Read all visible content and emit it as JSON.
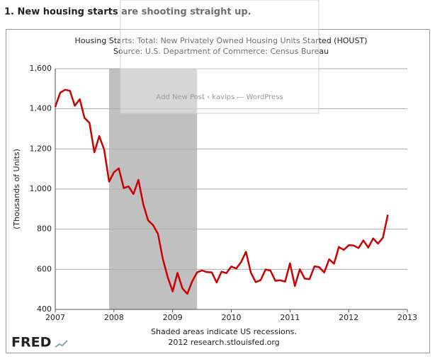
{
  "heading": "1. New housing starts are shooting straight up.",
  "overlay_text": "Add New Post ‹ kavips — WordPress",
  "chart_data": {
    "type": "line",
    "title": "Housing Starts: Total: New Privately Owned Housing Units Started (HOUST)",
    "subtitle": "Source: U.S. Department of Commerce: Census Bureau",
    "y_label": "(Thousands of Units)",
    "note": "Shaded areas indicate US recessions.",
    "source_line": "2012 research.stlouisfed.org",
    "logo": "FRED",
    "xlim": [
      2007,
      2013
    ],
    "xticks": [
      2007,
      2008,
      2009,
      2010,
      2011,
      2012,
      2013
    ],
    "ylim": [
      400,
      1600
    ],
    "yticks": [
      400,
      600,
      800,
      {
        "value": 1000,
        "label": "1,000"
      },
      {
        "value": 1200,
        "label": "1,200"
      },
      {
        "value": 1400,
        "label": "1,400"
      },
      {
        "value": 1600,
        "label": "1,600"
      }
    ],
    "grid": true,
    "recessions": [
      {
        "start": 2007.917,
        "end": 2009.417
      }
    ],
    "recession_color": "#c0c0c0",
    "series": [
      {
        "name": "HOUST",
        "color": "#cc0000",
        "x": [
          2007,
          2007.083,
          2007.167,
          2007.25,
          2007.333,
          2007.417,
          2007.5,
          2007.583,
          2007.667,
          2007.75,
          2007.833,
          2007.917,
          2008,
          2008.083,
          2008.167,
          2008.25,
          2008.333,
          2008.417,
          2008.5,
          2008.583,
          2008.667,
          2008.75,
          2008.833,
          2008.917,
          2009,
          2009.083,
          2009.167,
          2009.25,
          2009.333,
          2009.417,
          2009.5,
          2009.583,
          2009.667,
          2009.75,
          2009.833,
          2009.917,
          2010,
          2010.083,
          2010.167,
          2010.25,
          2010.333,
          2010.417,
          2010.5,
          2010.583,
          2010.667,
          2010.75,
          2010.833,
          2010.917,
          2011,
          2011.083,
          2011.167,
          2011.25,
          2011.333,
          2011.417,
          2011.5,
          2011.583,
          2011.667,
          2011.75,
          2011.833,
          2011.917,
          2012,
          2012.083,
          2012.167,
          2012.25,
          2012.333,
          2012.417,
          2012.5,
          2012.583,
          2012.667
        ],
        "values": [
          1409,
          1480,
          1495,
          1490,
          1415,
          1448,
          1354,
          1330,
          1183,
          1264,
          1197,
          1037,
          1084,
          1103,
          1005,
          1013,
          975,
          1046,
          923,
          844,
          820,
          777,
          652,
          560,
          490,
          582,
          505,
          478,
          540,
          585,
          594,
          586,
          585,
          534,
          588,
          581,
          614,
          604,
          636,
          687,
          583,
          536,
          546,
          599,
          594,
          543,
          545,
          539,
          630,
          517,
          600,
          554,
          551,
          615,
          610,
          584,
          650,
          628,
          711,
          697,
          720,
          719,
          706,
          744,
          708,
          754,
          728,
          758,
          872
        ]
      }
    ]
  }
}
